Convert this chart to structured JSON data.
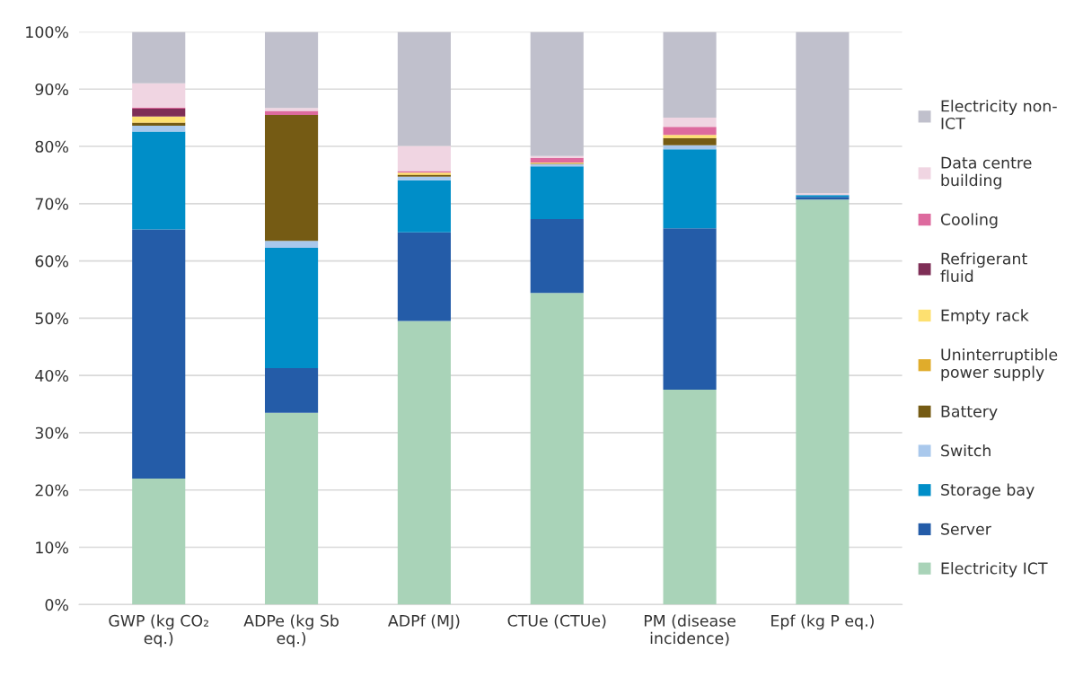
{
  "chart_data": {
    "type": "bar",
    "stacked": true,
    "categories": [
      "GWP (kg CO₂\neq.)",
      "ADPe (kg Sb\neq.)",
      "ADPf (MJ)",
      "CTUe (CTUe)",
      "PM (disease\nincidence)",
      "Epf (kg P eq.)"
    ],
    "series": [
      {
        "name": "Electricity ICT",
        "color": "#a9d3b8",
        "values": [
          22.0,
          33.5,
          49.5,
          54.4,
          37.5,
          70.7
        ]
      },
      {
        "name": "Server",
        "color": "#245ca8",
        "values": [
          43.5,
          7.8,
          15.5,
          12.9,
          28.2,
          0.5
        ]
      },
      {
        "name": "Storage bay",
        "color": "#008ec8",
        "values": [
          17.1,
          21.0,
          9.1,
          9.2,
          13.8,
          0.3
        ]
      },
      {
        "name": "Switch",
        "color": "#a9c8ec",
        "values": [
          1.0,
          1.2,
          0.6,
          0.4,
          0.7,
          0.0
        ]
      },
      {
        "name": "Battery",
        "color": "#755b14",
        "values": [
          0.5,
          22.0,
          0.3,
          0.1,
          1.2,
          0.0
        ]
      },
      {
        "name": "Uninterruptible\npower supply",
        "color": "#e0ac2b",
        "values": [
          0.1,
          0.0,
          0.1,
          0.1,
          0.1,
          0.0
        ]
      },
      {
        "name": "Empty rack",
        "color": "#fde070",
        "values": [
          1.0,
          0.0,
          0.3,
          0.1,
          0.5,
          0.0
        ]
      },
      {
        "name": "Refrigerant\nfluid",
        "color": "#7e2e56",
        "values": [
          1.4,
          0.0,
          0.0,
          0.0,
          0.0,
          0.0
        ]
      },
      {
        "name": "Cooling",
        "color": "#dd6a9e",
        "values": [
          0.2,
          0.7,
          0.3,
          0.8,
          1.4,
          0.0
        ]
      },
      {
        "name": "Data centre\nbuilding",
        "color": "#f0d5e2",
        "values": [
          4.2,
          0.5,
          4.4,
          0.3,
          1.6,
          0.3
        ]
      },
      {
        "name": "Electricity non-\nICT",
        "color": "#c0c0cc",
        "values": [
          9.0,
          13.3,
          19.9,
          21.7,
          15.0,
          28.2
        ]
      }
    ],
    "ylim": [
      0,
      100
    ],
    "yticks": [
      {
        "value": 0,
        "label": "0%"
      },
      {
        "value": 10,
        "label": "10%"
      },
      {
        "value": 20,
        "label": "20%"
      },
      {
        "value": 30,
        "label": "30%"
      },
      {
        "value": 40,
        "label": "40%"
      },
      {
        "value": 50,
        "label": "50%"
      },
      {
        "value": 60,
        "label": "60%"
      },
      {
        "value": 70,
        "label": "70%"
      },
      {
        "value": 80,
        "label": "80%"
      },
      {
        "value": 90,
        "label": "90%"
      },
      {
        "value": 100,
        "label": "100%"
      }
    ],
    "grid": "y",
    "legend": "right"
  }
}
